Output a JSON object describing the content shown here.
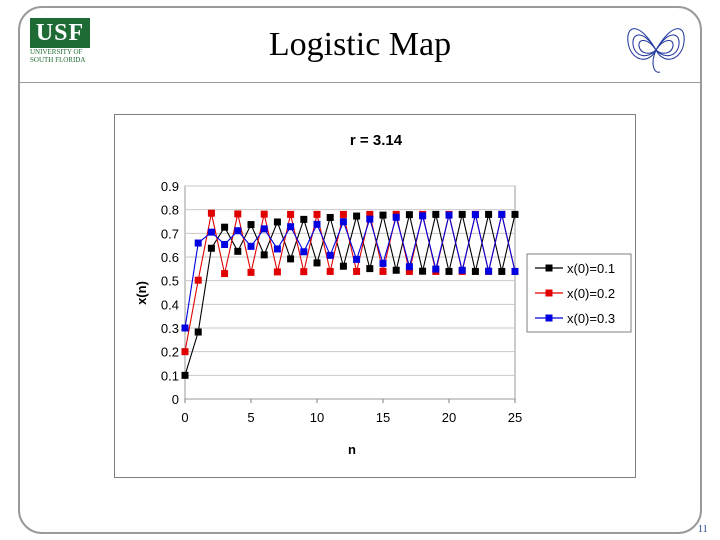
{
  "slide": {
    "title": "Logistic Map",
    "page_number": "11"
  },
  "logo": {
    "mark": "USF",
    "line1": "UNIVERSITY OF",
    "line2": "SOUTH FLORIDA"
  },
  "colors": {
    "usf_green": "#1e6b35",
    "series_black": "#000000",
    "series_red": "#e00000",
    "series_blue": "#0000e0"
  },
  "icons": [
    "butterfly-attractor-icon"
  ],
  "chart_data": {
    "type": "line",
    "title": "r = 3.14",
    "xlabel": "n",
    "ylabel": "x(n)",
    "xlim": [
      0,
      25
    ],
    "ylim": [
      0,
      0.9
    ],
    "xticks": [
      0,
      5,
      10,
      15,
      20,
      25
    ],
    "yticks": [
      0,
      0.1,
      0.2,
      0.3,
      0.4,
      0.5,
      0.6,
      0.7,
      0.8,
      0.9
    ],
    "grid": true,
    "legend": "right",
    "x": [
      0,
      1,
      2,
      3,
      4,
      5,
      6,
      7,
      8,
      9,
      10,
      11,
      12,
      13,
      14,
      15,
      16,
      17,
      18,
      19,
      20,
      21,
      22,
      23,
      24,
      25
    ],
    "series": [
      {
        "name": "x(0)=0.1",
        "color": "#000000",
        "values": [
          0.1,
          0.283,
          0.637,
          0.726,
          0.624,
          0.737,
          0.609,
          0.748,
          0.592,
          0.759,
          0.575,
          0.767,
          0.561,
          0.773,
          0.551,
          0.777,
          0.544,
          0.779,
          0.54,
          0.78,
          0.539,
          0.78,
          0.539,
          0.78,
          0.539,
          0.78
        ]
      },
      {
        "name": "x(0)=0.2",
        "color": "#e00000",
        "values": [
          0.2,
          0.502,
          0.785,
          0.53,
          0.782,
          0.535,
          0.781,
          0.537,
          0.78,
          0.538,
          0.78,
          0.539,
          0.78,
          0.539,
          0.78,
          0.539,
          0.78,
          0.539,
          0.78,
          0.539,
          0.78,
          0.539,
          0.78,
          0.539,
          0.78,
          0.539
        ]
      },
      {
        "name": "x(0)=0.3",
        "color": "#0000e0",
        "values": [
          0.3,
          0.659,
          0.705,
          0.653,
          0.711,
          0.645,
          0.719,
          0.634,
          0.728,
          0.622,
          0.738,
          0.607,
          0.749,
          0.59,
          0.76,
          0.573,
          0.768,
          0.559,
          0.774,
          0.549,
          0.777,
          0.544,
          0.779,
          0.54,
          0.78,
          0.539
        ]
      }
    ]
  }
}
